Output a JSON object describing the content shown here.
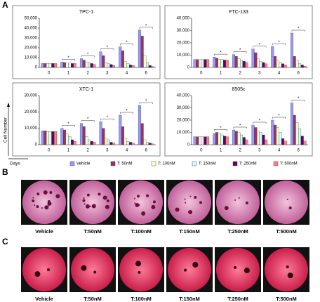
{
  "panel_labels": [
    "A",
    "B",
    "C"
  ],
  "y_axis_label": "Cell Number",
  "x_axis_label": "Days",
  "chart_data": [
    {
      "type": "bar",
      "title": "TPC-1",
      "categories": [
        "0",
        "1",
        "2",
        "3",
        "4",
        "6"
      ],
      "series": [
        {
          "name": "Vehicle",
          "color": "#9999ff",
          "values": [
            4000,
            5500,
            9000,
            16000,
            21000,
            38000
          ]
        },
        {
          "name": "T: 50nM",
          "color": "#993366",
          "values": [
            4000,
            5000,
            7500,
            12000,
            17000,
            32000
          ]
        },
        {
          "name": "T: 100nM",
          "color": "#ffffcc",
          "values": [
            4000,
            4500,
            5500,
            5000,
            6000,
            12000
          ]
        },
        {
          "name": "T: 150nM",
          "color": "#ccffff",
          "values": [
            4000,
            4500,
            5000,
            4000,
            4000,
            5000
          ]
        },
        {
          "name": "T: 250nM",
          "color": "#660066",
          "values": [
            4000,
            4000,
            4000,
            3000,
            2500,
            2000
          ]
        },
        {
          "name": "T: 500nM",
          "color": "#ff8080",
          "values": [
            4000,
            4000,
            3000,
            2000,
            2000,
            1000
          ]
        }
      ],
      "significance": [
        null,
        "*",
        "*",
        "*",
        "*",
        "*"
      ],
      "ylim": [
        0,
        50000
      ],
      "yticks": [
        0,
        {
          "value": 10000,
          "label": "10,000"
        },
        {
          "value": 20000,
          "label": "20,000"
        },
        {
          "value": 30000,
          "label": "30,000"
        },
        {
          "value": 40000,
          "label": "40,000"
        },
        {
          "value": 50000,
          "label": "50,000"
        }
      ]
    },
    {
      "type": "bar",
      "title": "FTC-133",
      "categories": [
        "0",
        "1",
        "2",
        "3",
        "4",
        "6"
      ],
      "series": [
        {
          "name": "Vehicle",
          "color": "#9999ff",
          "values": [
            6500,
            8500,
            10500,
            15000,
            17000,
            28000
          ]
        },
        {
          "name": "T: 50nM",
          "color": "#993366",
          "values": [
            6500,
            7500,
            9000,
            12000,
            9000,
            9000
          ]
        },
        {
          "name": "T: 100nM",
          "color": "#ffffcc",
          "values": [
            6500,
            6500,
            7000,
            7000,
            6000,
            6000
          ]
        },
        {
          "name": "T: 150nM",
          "color": "#ccffff",
          "values": [
            6500,
            6500,
            6000,
            5000,
            4000,
            3000
          ]
        },
        {
          "name": "T: 250nM",
          "color": "#660066",
          "values": [
            6500,
            6000,
            5000,
            4000,
            3000,
            2000
          ]
        },
        {
          "name": "T: 500nM",
          "color": "#ff8080",
          "values": [
            6500,
            6000,
            4000,
            3000,
            2000,
            1000
          ]
        }
      ],
      "significance": [
        null,
        "*",
        "*",
        "*",
        "*",
        "*"
      ],
      "ylim": [
        0,
        40000
      ],
      "yticks": [
        0,
        {
          "value": 10000,
          "label": "10,000"
        },
        {
          "value": 20000,
          "label": "20,000"
        },
        {
          "value": 30000,
          "label": "30,000"
        },
        {
          "value": 40000,
          "label": "40,000"
        }
      ]
    },
    {
      "type": "bar",
      "title": "XTC-1",
      "categories": [
        "0",
        "1",
        "2",
        "3",
        "4",
        "6"
      ],
      "series": [
        {
          "name": "Vehicle",
          "color": "#9999ff",
          "values": [
            8500,
            10000,
            13000,
            14000,
            18000,
            24000
          ]
        },
        {
          "name": "T: 50nM",
          "color": "#993366",
          "values": [
            8500,
            9000,
            11000,
            10000,
            11000,
            13000
          ]
        },
        {
          "name": "T: 100nM",
          "color": "#ffffcc",
          "values": [
            8000,
            6500,
            5000,
            4000,
            4000,
            3000
          ]
        },
        {
          "name": "T: 150nM",
          "color": "#ccffff",
          "values": [
            8000,
            5000,
            3000,
            3000,
            2000,
            1500
          ]
        },
        {
          "name": "T: 250nM",
          "color": "#660066",
          "values": [
            8000,
            3000,
            2000,
            1500,
            1500,
            1000
          ]
        },
        {
          "name": "T: 500nM",
          "color": "#ff8080",
          "values": [
            8000,
            2000,
            1500,
            1000,
            1000,
            500
          ]
        }
      ],
      "significance": [
        null,
        "*",
        "*",
        "*",
        "*",
        "*"
      ],
      "ylim": [
        0,
        30000
      ],
      "yticks": [
        0,
        {
          "value": 10000,
          "label": "10,000"
        },
        {
          "value": 20000,
          "label": "20,000"
        },
        {
          "value": 30000,
          "label": "30,000"
        }
      ]
    },
    {
      "type": "bar",
      "title": "8505c",
      "categories": [
        "0",
        "1",
        "2",
        "3",
        "4",
        "6"
      ],
      "series": [
        {
          "name": "Vehicle",
          "color": "#9999ff",
          "values": [
            6500,
            9000,
            12000,
            16000,
            20000,
            34000
          ]
        },
        {
          "name": "T: 50nM",
          "color": "#993366",
          "values": [
            6500,
            10000,
            11000,
            14000,
            16000,
            24000
          ]
        },
        {
          "name": "T: 100nM",
          "color": "#ffffcc",
          "values": [
            6500,
            9500,
            10000,
            11000,
            14000,
            18000
          ]
        },
        {
          "name": "T: 150nM",
          "color": "#ccffff",
          "values": [
            6500,
            8000,
            8000,
            10000,
            10000,
            13000
          ]
        },
        {
          "name": "T: 250nM",
          "color": "#660066",
          "values": [
            6500,
            7000,
            6000,
            8000,
            5000,
            7000
          ]
        },
        {
          "name": "T: 500nM",
          "color": "#ff8080",
          "values": [
            6500,
            6500,
            4000,
            4000,
            3000,
            3000
          ]
        }
      ],
      "significance": [
        null,
        "*",
        "*",
        "*",
        "*",
        "*"
      ],
      "ylim": [
        0,
        40000
      ],
      "yticks": [
        0,
        {
          "value": 10000,
          "label": "10,000"
        },
        {
          "value": 20000,
          "label": "20,000"
        },
        {
          "value": 30000,
          "label": "30,000"
        },
        {
          "value": 40000,
          "label": "40,000"
        }
      ]
    }
  ],
  "photo_panels": [
    {
      "labels": [
        "Vehicle",
        "T:50nM",
        "T:100nM",
        "T:150nM",
        "T:250nM",
        "T:500nM"
      ]
    },
    {
      "labels": [
        "Vehicle",
        "T:50nM",
        "T:100nM",
        "T:150nM",
        "T:250nM",
        "T:500nM"
      ]
    }
  ]
}
